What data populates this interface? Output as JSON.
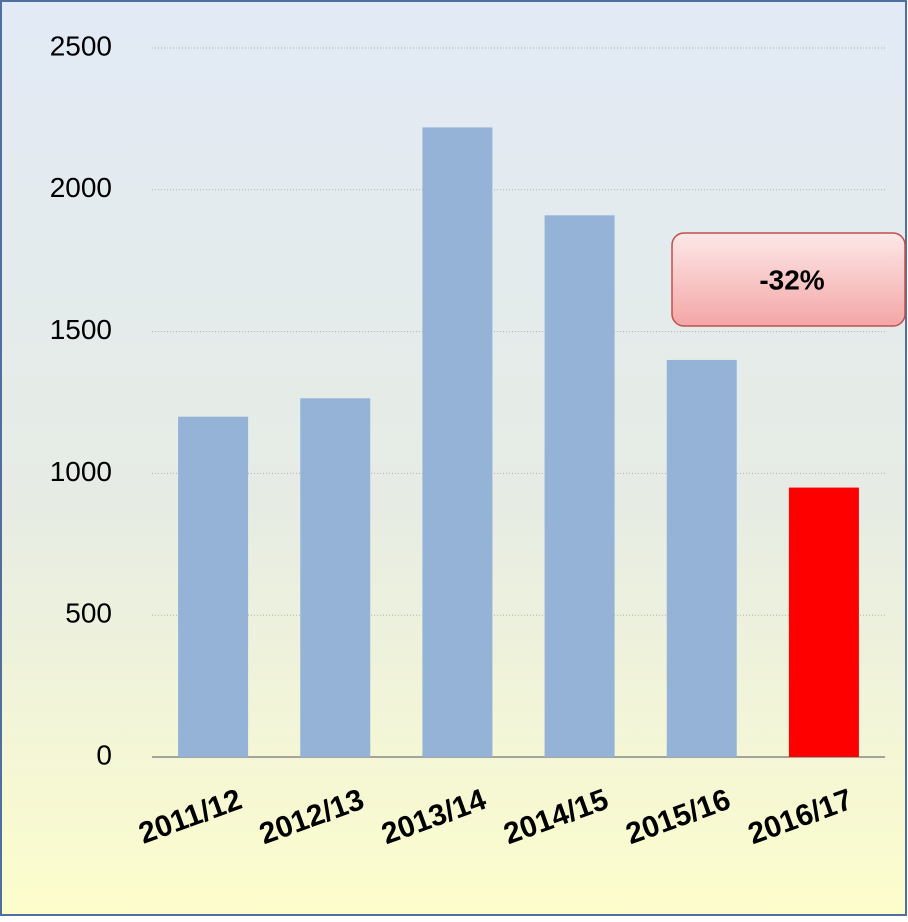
{
  "chart_data": {
    "type": "bar",
    "categories": [
      "2011/12",
      "2012/13",
      "2013/14",
      "2014/15",
      "2015/16",
      "2016/17"
    ],
    "values": [
      1200,
      1265,
      2220,
      1910,
      1400,
      950
    ],
    "colors": [
      "#95b3d7",
      "#95b3d7",
      "#95b3d7",
      "#95b3d7",
      "#95b3d7",
      "#ff0000"
    ],
    "ylim": [
      0,
      2500
    ],
    "yticks": [
      0,
      500,
      1000,
      1500,
      2000,
      2500
    ],
    "grid": true,
    "annotation": "-32%"
  }
}
